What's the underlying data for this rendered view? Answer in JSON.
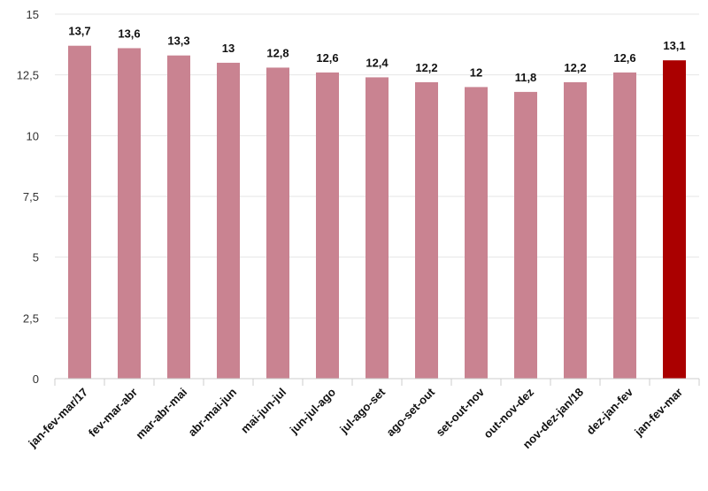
{
  "chart_data": {
    "type": "bar",
    "categories": [
      "jan-fev-mar/17",
      "fev-mar-abr",
      "mar-abr-mai",
      "abr-mai-jun",
      "mai-jun-jul",
      "jun-jul-ago",
      "jul-ago-set",
      "ago-set-out",
      "set-out-nov",
      "out-nov-dez",
      "nov-dez-jan/18",
      "dez-jan-fev",
      "jan-fev-mar"
    ],
    "values": [
      13.7,
      13.6,
      13.3,
      13,
      12.8,
      12.6,
      12.4,
      12.2,
      12,
      11.8,
      12.2,
      12.6,
      13.1
    ],
    "value_labels": [
      "13,7",
      "13,6",
      "13,3",
      "13",
      "12,8",
      "12,6",
      "12,4",
      "12,2",
      "12",
      "11,8",
      "12,2",
      "12,6",
      "13,1"
    ],
    "ylim": [
      0,
      15
    ],
    "yticks": [
      0,
      2.5,
      5,
      7.5,
      10,
      12.5,
      15
    ],
    "ytick_labels": [
      "0",
      "2,5",
      "5",
      "7,5",
      "10",
      "12,5",
      "15"
    ],
    "grid": true,
    "title": "",
    "xlabel": "",
    "ylabel": "",
    "colors": {
      "bar": "#c98391",
      "highlight_bar": "#aa0000",
      "highlight_index": 12
    }
  }
}
